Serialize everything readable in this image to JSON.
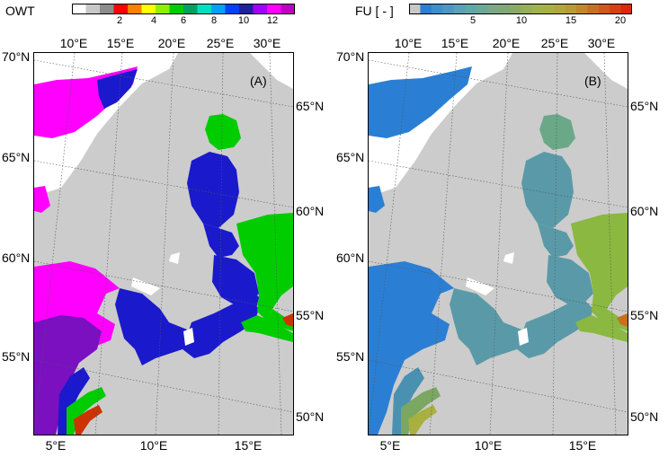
{
  "panels": [
    {
      "label": "(A)",
      "colorbar": {
        "title": "OWT",
        "ticks": [
          "2",
          "4",
          "6",
          "8",
          "10",
          "12"
        ],
        "colors": [
          "#ffffff",
          "#c8c8c8",
          "#8c8c8c",
          "#ff0000",
          "#ff7f00",
          "#ffff00",
          "#90ee00",
          "#00cc00",
          "#00a060",
          "#00e0c0",
          "#00a0ff",
          "#0040ff",
          "#2020a0",
          "#a000ff",
          "#ff00ff",
          "#c000c0"
        ]
      },
      "top_lon": [
        "10°E",
        "15°E",
        "20°E",
        "25°E",
        "30°E"
      ],
      "bottom_lon": [
        "5°E",
        "10°E",
        "15°E"
      ],
      "left_lat": [
        "70°N",
        "65°N",
        "60°N",
        "55°N"
      ],
      "right_lat": [
        "65°N",
        "60°N",
        "55°N",
        "50°N"
      ]
    },
    {
      "label": "(B)",
      "colorbar": {
        "title": "FU [ - ]",
        "ticks": [
          "5",
          "10",
          "15",
          "20"
        ],
        "colors": [
          "#c8c8c8",
          "#2a7fd4",
          "#3a8fd0",
          "#4a97c4",
          "#5aa0b8",
          "#60a8a8",
          "#6aa898",
          "#7aa888",
          "#80a878",
          "#8aaa68",
          "#94b058",
          "#a0b448",
          "#a8b040",
          "#b0a838",
          "#b89c30",
          "#c08828",
          "#c87020",
          "#d05818",
          "#d84010",
          "#e02808"
        ]
      },
      "top_lon": [
        "10°E",
        "15°E",
        "20°E",
        "25°E",
        "30°E"
      ],
      "bottom_lon": [
        "5°E",
        "10°E",
        "15°E"
      ],
      "left_lat": [
        "70°N",
        "65°N",
        "60°N",
        "55°N"
      ],
      "right_lat": [
        "65°N",
        "60°N",
        "55°N",
        "50°N"
      ]
    }
  ],
  "colors": {
    "land": "#cccccc",
    "background": "#ffffff",
    "owt_magenta": "#ff00ff",
    "owt_blue": "#1a1acc",
    "owt_green": "#00cc00",
    "fu_blue": "#2a7fd4",
    "fu_teal": "#5a9aa8",
    "fu_green": "#8ab840"
  }
}
